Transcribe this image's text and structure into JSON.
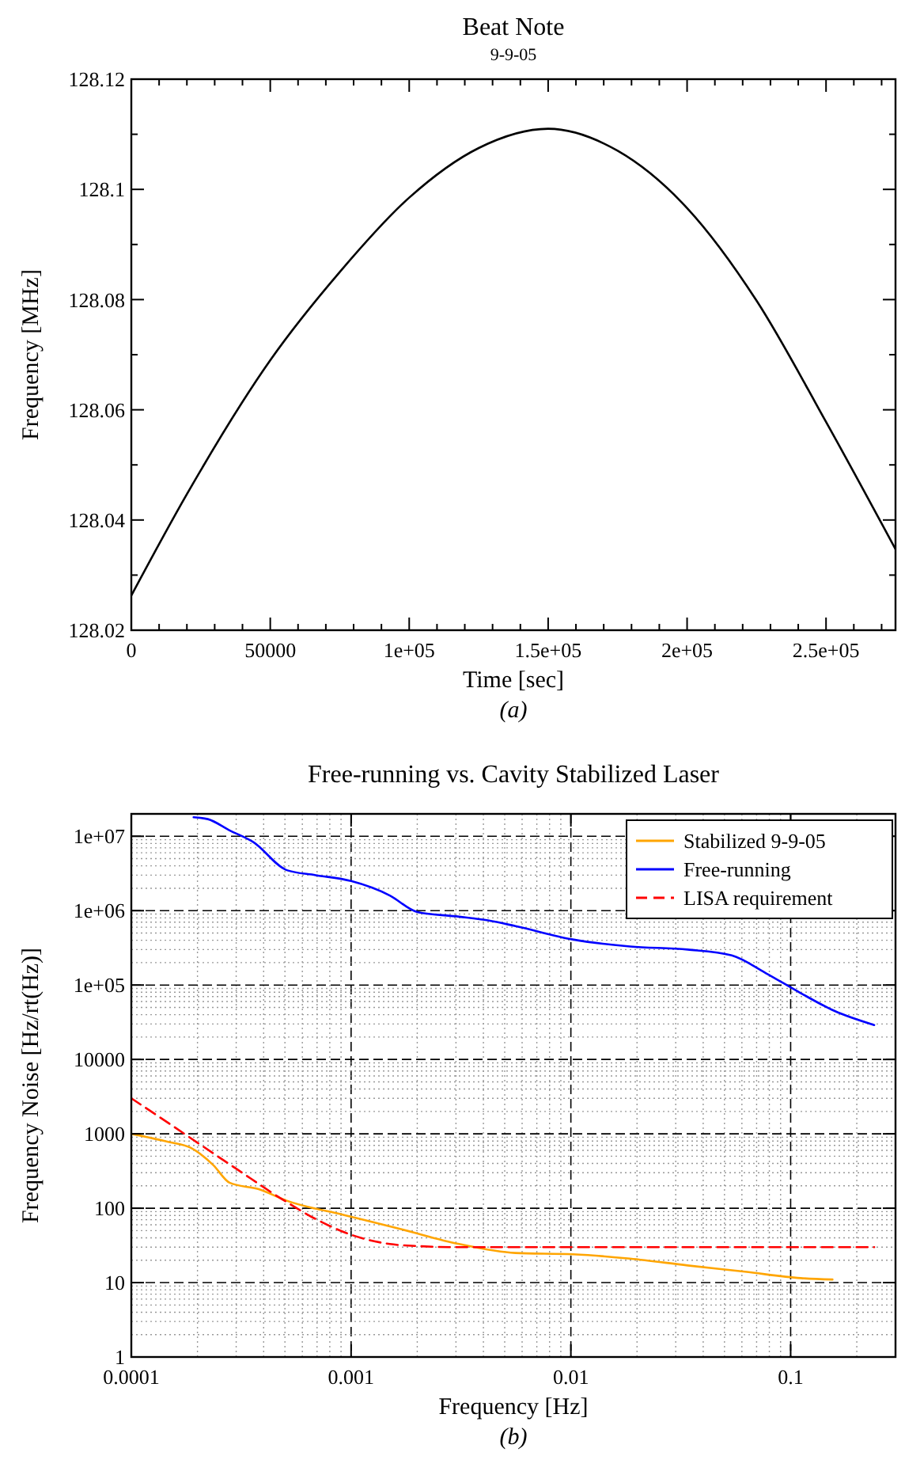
{
  "chart_data": [
    {
      "type": "line",
      "title": "Beat Note",
      "subtitle": "9-9-05",
      "xlabel": "Time [sec]",
      "ylabel": "Frequency [MHz]",
      "annotations": [
        "(a)"
      ],
      "xlim": [
        0,
        275000
      ],
      "ylim": [
        128.02,
        128.12
      ],
      "xticks": [
        0,
        {
          "value": 10000,
          "label": null
        },
        {
          "value": 20000,
          "label": null
        },
        {
          "value": 30000,
          "label": null
        },
        {
          "value": 40000,
          "label": null
        },
        50000,
        {
          "value": 60000,
          "label": null
        },
        {
          "value": 70000,
          "label": null
        },
        {
          "value": 80000,
          "label": null
        },
        {
          "value": 90000,
          "label": null
        },
        {
          "value": 100000,
          "label": "1e+05"
        },
        {
          "value": 110000,
          "label": null
        },
        {
          "value": 120000,
          "label": null
        },
        {
          "value": 130000,
          "label": null
        },
        {
          "value": 140000,
          "label": null
        },
        {
          "value": 150000,
          "label": "1.5e+05"
        },
        {
          "value": 160000,
          "label": null
        },
        {
          "value": 170000,
          "label": null
        },
        {
          "value": 180000,
          "label": null
        },
        {
          "value": 190000,
          "label": null
        },
        {
          "value": 200000,
          "label": "2e+05"
        },
        {
          "value": 210000,
          "label": null
        },
        {
          "value": 220000,
          "label": null
        },
        {
          "value": 230000,
          "label": null
        },
        {
          "value": 240000,
          "label": null
        },
        {
          "value": 250000,
          "label": "2.5e+05"
        },
        {
          "value": 260000,
          "label": null
        },
        {
          "value": 270000,
          "label": null
        }
      ],
      "yticks": [
        128.02,
        {
          "value": 128.03,
          "label": null
        },
        128.04,
        {
          "value": 128.05,
          "label": null
        },
        128.06,
        {
          "value": 128.07,
          "label": null
        },
        128.08,
        {
          "value": 128.09,
          "label": null
        },
        128.1,
        {
          "value": 128.11,
          "label": null
        },
        128.12
      ],
      "grid": false,
      "legend": false,
      "series": [
        {
          "color": "#000000",
          "x": [
            0,
            20000,
            50000,
            75000,
            100000,
            125000,
            150000,
            175000,
            200000,
            225000,
            250000,
            275000
          ],
          "values": [
            128.0263,
            128.0447,
            128.069,
            128.085,
            128.0985,
            128.1075,
            128.111,
            128.107,
            128.0966,
            128.0798,
            128.0578,
            128.0347
          ]
        }
      ]
    },
    {
      "type": "line",
      "title": "Free-running vs. Cavity Stabilized Laser",
      "xlabel": "Frequency [Hz]",
      "ylabel": "Frequency Noise [Hz/rt(Hz)]",
      "annotations": [
        "(b)"
      ],
      "log": "xy",
      "xlim": [
        0.0001,
        0.3
      ],
      "ylim": [
        1,
        20000000
      ],
      "xticks": [
        0.0001,
        0.001,
        0.01,
        0.1
      ],
      "yticks": [
        1,
        10,
        100,
        1000,
        10000,
        {
          "value": 100000,
          "label": "1e+05"
        },
        {
          "value": 1000000,
          "label": "1e+06"
        },
        {
          "value": 10000000,
          "label": "1e+07"
        }
      ],
      "grid": true,
      "legend": "top right",
      "series": [
        {
          "name": "Stabilized 9-9-05",
          "color": "#ffa500",
          "x": [
            0.0001,
            0.000147,
            0.000186,
            0.000236,
            0.00028,
            0.00038,
            0.00051,
            0.00093,
            0.0017,
            0.0031,
            0.0056,
            0.0102,
            0.0186,
            0.034,
            0.062,
            0.111,
            0.155
          ],
          "values": [
            1000,
            780,
            650,
            380,
            220,
            180,
            126,
            81,
            52,
            33,
            25,
            24,
            21,
            17,
            14,
            11.5,
            11
          ]
        },
        {
          "name": "Free-running",
          "color": "#0000ff",
          "x": [
            0.000192,
            0.000223,
            0.00028,
            0.00036,
            0.00051,
            0.00069,
            0.001,
            0.0015,
            0.002,
            0.0031,
            0.0042,
            0.0056,
            0.0102,
            0.0186,
            0.034,
            0.054,
            0.077,
            0.111,
            0.158,
            0.24
          ],
          "values": [
            18000000,
            17000000,
            12000000,
            8300000,
            3500000,
            3000000,
            2500000,
            1600000,
            960000,
            830000,
            740000,
            620000,
            410000,
            330000,
            300000,
            250000,
            145000,
            78000,
            45000,
            29000
          ]
        },
        {
          "name": "LISA requirement",
          "color": "#ff0000",
          "line_style": "dashed",
          "x": [
            0.0001,
            0.00015,
            0.0002,
            0.0003,
            0.0005,
            0.0007,
            0.001,
            0.0015,
            0.002,
            0.003,
            0.01,
            0.24
          ],
          "values": [
            3000,
            1350,
            760,
            340,
            125,
            70,
            44,
            33,
            31,
            30,
            30,
            30
          ]
        }
      ]
    }
  ]
}
